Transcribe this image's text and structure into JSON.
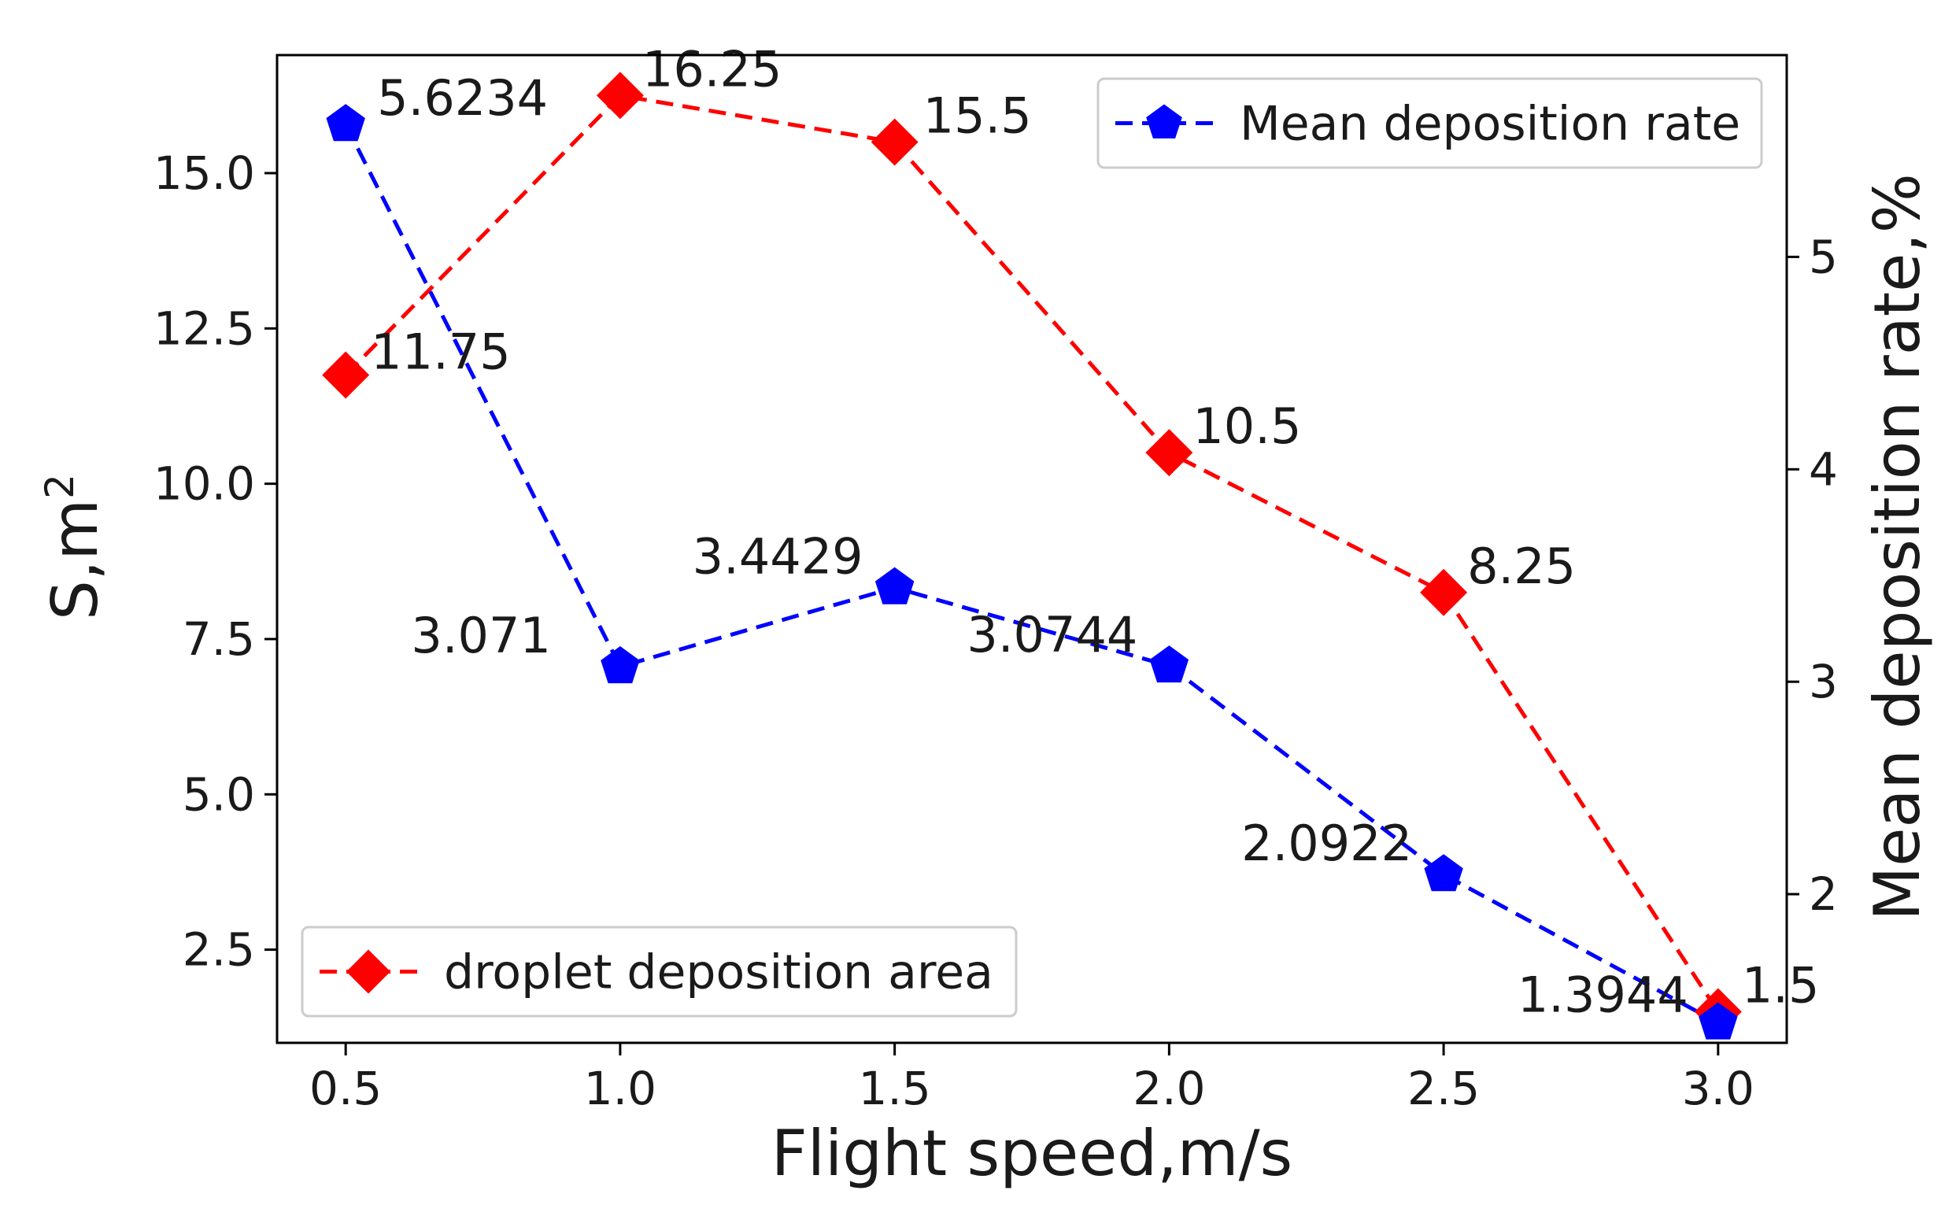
{
  "chart_data": {
    "type": "line",
    "x": [
      0.5,
      1.0,
      1.5,
      2.0,
      2.5,
      3.0
    ],
    "xlabel": "Flight speed,m/s",
    "xlim": [
      0.375,
      3.125
    ],
    "x_ticks": [
      "0.5",
      "1.0",
      "1.5",
      "2.0",
      "2.5",
      "3.0"
    ],
    "left_axis": {
      "label": "S,m",
      "label_superscript": "2",
      "ylim": [
        1.0,
        16.9
      ],
      "ticks": [
        2.5,
        5.0,
        7.5,
        10.0,
        12.5,
        15.0
      ],
      "tick_labels": [
        "2.5",
        "5.0",
        "7.5",
        "10.0",
        "12.5",
        "15.0"
      ]
    },
    "right_axis": {
      "label": "Mean deposition rate,%",
      "ylim": [
        1.3,
        5.95
      ],
      "ticks": [
        2,
        3,
        4,
        5
      ],
      "tick_labels": [
        "2",
        "3",
        "4",
        "5"
      ]
    },
    "series": [
      {
        "name": "droplet deposition area",
        "axis": "left",
        "color": "#ff0000",
        "marker": "diamond",
        "line_style": "dashed",
        "values": [
          11.75,
          16.25,
          15.5,
          10.5,
          8.25,
          1.5
        ],
        "labels": [
          "11.75",
          "16.25",
          "15.5",
          "10.5",
          "8.25",
          "1.5"
        ]
      },
      {
        "name": "Mean deposition rate",
        "axis": "right",
        "color": "#0000ff",
        "marker": "pentagon",
        "line_style": "dashed",
        "values": [
          5.6234,
          3.071,
          3.4429,
          3.0744,
          2.0922,
          1.3944
        ],
        "labels": [
          "5.6234",
          "3.071",
          "3.4429",
          "3.0744",
          "2.0922",
          "1.3944"
        ]
      }
    ],
    "legends": [
      {
        "series": 1,
        "text": "Mean deposition rate",
        "placement": "top-right"
      },
      {
        "series": 0,
        "text": "droplet deposition area",
        "placement": "bottom-left"
      }
    ]
  }
}
